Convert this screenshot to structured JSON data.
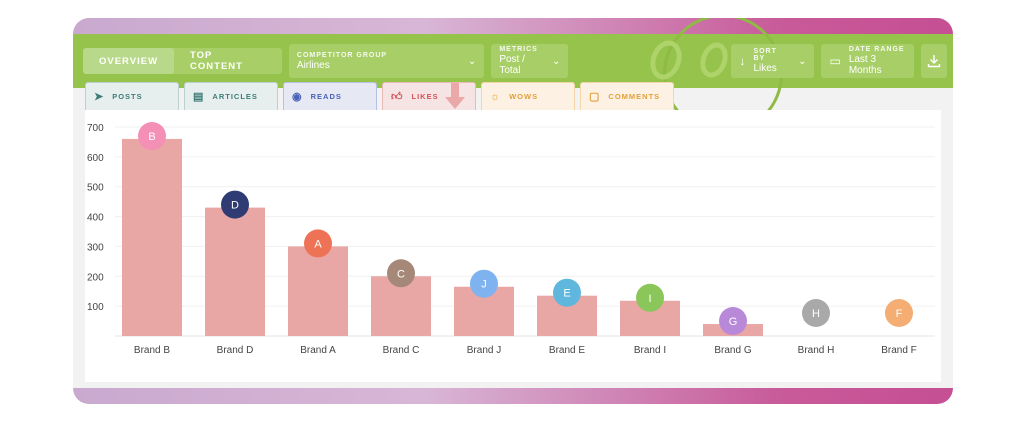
{
  "toolbar": {
    "tabs": [
      "OVERVIEW",
      "TOP CONTENT"
    ],
    "competitor_group": {
      "caption": "COMPETITOR GROUP",
      "value": "Airlines"
    },
    "metrics": {
      "caption": "METRICS",
      "value": "Post / Total"
    },
    "sort_by": {
      "caption": "SORT BY",
      "value": "Likes"
    },
    "date_range": {
      "caption": "DATE RANGE",
      "value": "Last 3 Months"
    }
  },
  "metric_tabs": [
    "POSTS",
    "ARTICLES",
    "READS",
    "LIKES",
    "WOWS",
    "COMMENTS"
  ],
  "colors": {
    "bar": "#e8a6a5",
    "toolbar": "#96c34b",
    "accent": "#d2545a"
  },
  "chart_data": {
    "type": "bar",
    "categories": [
      "Brand B",
      "Brand D",
      "Brand A",
      "Brand C",
      "Brand J",
      "Brand E",
      "Brand I",
      "Brand G",
      "Brand H",
      "Brand F"
    ],
    "values": [
      660,
      430,
      300,
      200,
      165,
      135,
      118,
      40,
      0,
      0
    ],
    "markers": [
      "B",
      "D",
      "A",
      "C",
      "J",
      "E",
      "I",
      "G",
      "H",
      "F"
    ],
    "marker_colors": [
      "#f48fb6",
      "#2f3b73",
      "#ee7356",
      "#a58878",
      "#7eb3f0",
      "#5fb7dd",
      "#8bc65a",
      "#b889d8",
      "#a9a9a9",
      "#f4ad73"
    ],
    "yticks": [
      100,
      200,
      300,
      400,
      500,
      600,
      700
    ],
    "ylim": [
      0,
      700
    ],
    "grid": true
  }
}
